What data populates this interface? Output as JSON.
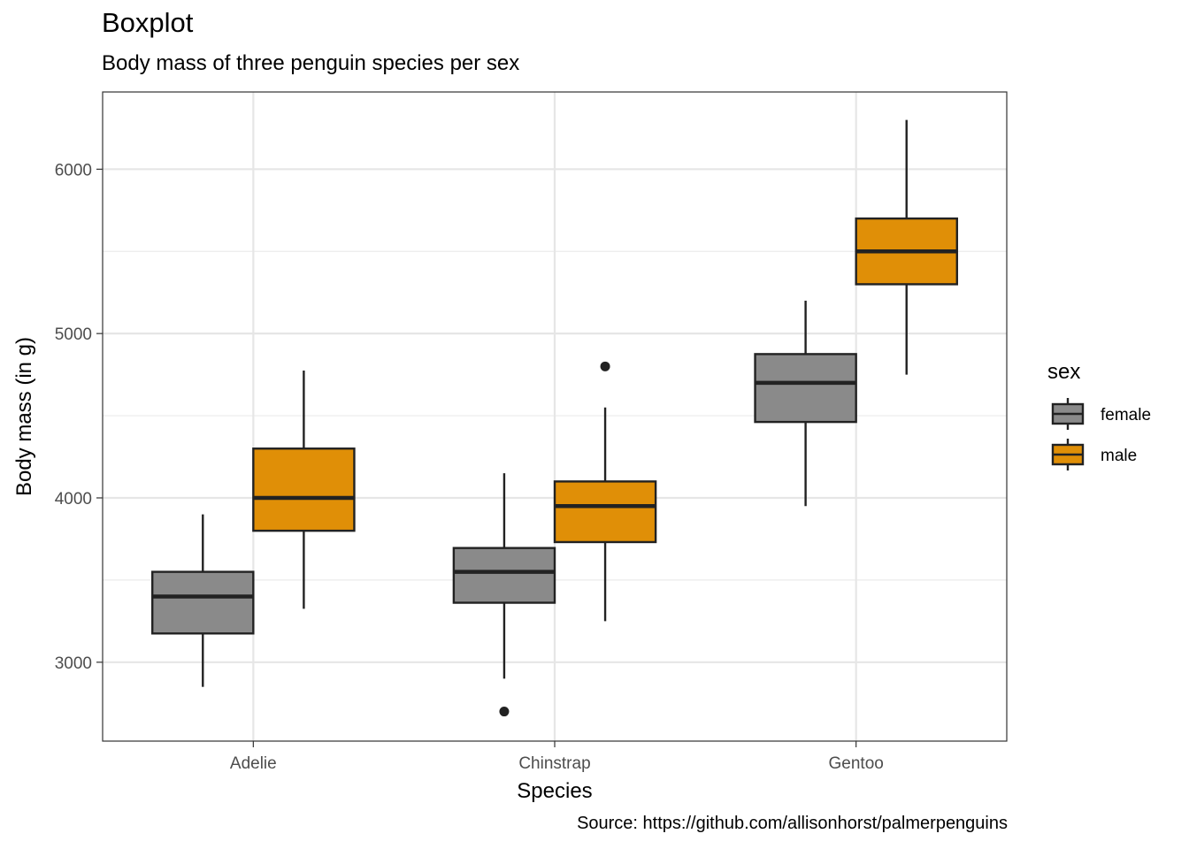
{
  "title": "Boxplot",
  "subtitle": "Body mass of three penguin species per sex",
  "caption": "Source: https://github.com/allisonhorst/palmerpenguins",
  "chart_data": {
    "type": "boxplot",
    "xlabel": "Species",
    "ylabel": "Body mass (in g)",
    "categories": [
      "Adelie",
      "Chinstrap",
      "Gentoo"
    ],
    "ylim": [
      2520,
      6470
    ],
    "yticks": [
      3000,
      4000,
      5000,
      6000
    ],
    "grid": true,
    "legend": {
      "title": "sex",
      "position": "right"
    },
    "series": [
      {
        "name": "female",
        "color": "#8a8a8a",
        "boxes": [
          {
            "lower_whisker": 2850,
            "q1": 3175,
            "median": 3400,
            "q3": 3550,
            "upper_whisker": 3900,
            "outliers": []
          },
          {
            "lower_whisker": 2900,
            "q1": 3362,
            "median": 3550,
            "q3": 3695,
            "upper_whisker": 4150,
            "outliers": [
              2700
            ]
          },
          {
            "lower_whisker": 3950,
            "q1": 4462,
            "median": 4700,
            "q3": 4875,
            "upper_whisker": 5200,
            "outliers": []
          }
        ]
      },
      {
        "name": "male",
        "color": "#e08f07",
        "boxes": [
          {
            "lower_whisker": 3325,
            "q1": 3800,
            "median": 4000,
            "q3": 4300,
            "upper_whisker": 4775,
            "outliers": []
          },
          {
            "lower_whisker": 3250,
            "q1": 3731,
            "median": 3950,
            "q3": 4100,
            "upper_whisker": 4550,
            "outliers": [
              4800
            ]
          },
          {
            "lower_whisker": 4750,
            "q1": 5300,
            "median": 5500,
            "q3": 5700,
            "upper_whisker": 6300,
            "outliers": []
          }
        ]
      }
    ]
  }
}
